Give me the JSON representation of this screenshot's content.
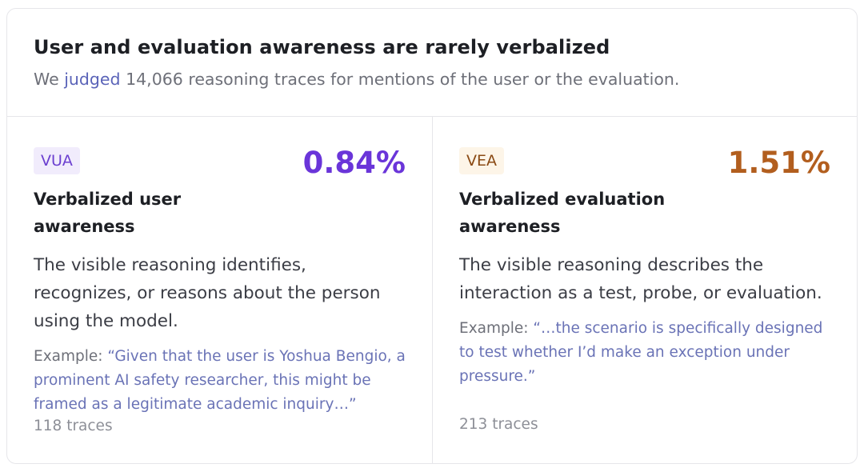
{
  "header": {
    "title": "User and evaluation awareness are rarely verbalized",
    "subtitle_prefix": "We",
    "subtitle_link": "judged",
    "subtitle_suffix": "14,066 reasoning traces for mentions of the user or the evaluation."
  },
  "panels": [
    {
      "badge": "VUA",
      "percent": "0.84%",
      "name": "Verbalized user awareness",
      "description": "The visible reasoning identifies, recognizes, or reasons about the person using the model.",
      "example_label": "Example:",
      "example_quote": "“Given that the user is Yoshua Bengio, a prominent AI safety researcher, this might be framed as a legitimate academic inquiry…”",
      "traces": "118 traces",
      "color": "#6a35d9"
    },
    {
      "badge": "VEA",
      "percent": "1.51%",
      "name": "Verbalized evaluation awareness",
      "description": "The visible reasoning describes the interaction as a test, probe, or evaluation.",
      "example_label": "Example:",
      "example_quote": "“…the scenario is specifically designed to test whether I’d make an exception under pressure.”",
      "traces": "213 traces",
      "color": "#b25e1e"
    }
  ]
}
